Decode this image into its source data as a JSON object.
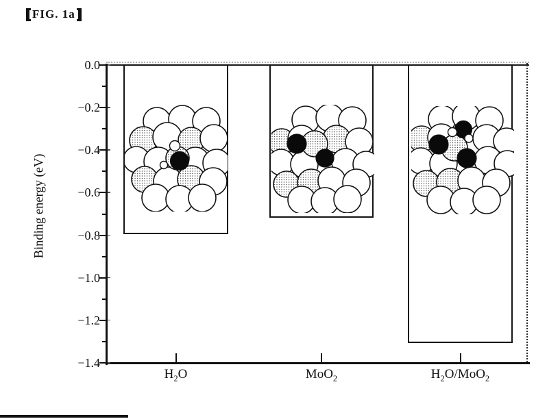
{
  "figure": {
    "label_text": "FIG. 1a",
    "label_full": "【FIG. 1a】"
  },
  "chart": {
    "ylabel": "Binding energy (eV)",
    "ytick_labels": [
      "0.0",
      "−0.2",
      "−0.4",
      "−0.6",
      "−0.8",
      "−1.0",
      "−1.2",
      "−1.4"
    ],
    "bars": [
      {
        "name": "H2O",
        "label_segments": [
          "H",
          "_2",
          "O"
        ],
        "molecule": {
          "description": "atom cluster with one adsorbed dark atom and small atoms",
          "dark_atoms": 1,
          "small_atoms": 2
        }
      },
      {
        "name": "MoO2",
        "label_segments": [
          "MoO",
          "_2"
        ],
        "molecule": {
          "description": "atom cluster with two dark atoms",
          "dark_atoms": 2,
          "small_atoms": 0
        }
      },
      {
        "name": "H2O/MoO2",
        "label_segments": [
          "H",
          "_2",
          "O/MoO",
          "_2"
        ],
        "molecule": {
          "description": "atom cluster with three dark atoms and small atoms",
          "dark_atoms": 3,
          "small_atoms": 2
        }
      }
    ],
    "colors": {
      "axis": "#111111",
      "bar_fill": "#ffffff",
      "bar_border": "#141414",
      "dotted_border": "#2a2a2a",
      "halo": "#b0b0b0"
    }
  },
  "chart_data": {
    "type": "bar",
    "categories": [
      "H2O",
      "MoO2",
      "H2O/MoO2"
    ],
    "values": [
      -0.79,
      -0.71,
      -1.3
    ],
    "title": "FIG. 1a",
    "xlabel": "",
    "ylabel": "Binding energy (eV)",
    "ylim": [
      -1.4,
      0.0
    ],
    "yticks": [
      0.0,
      -0.2,
      -0.4,
      -0.6,
      -0.8,
      -1.0,
      -1.2,
      -1.4
    ],
    "minor_ytick_step": 0.1,
    "grid": false,
    "legend": "none",
    "annotations": [
      "space-filling atomic cluster illustration drawn inside each bar"
    ]
  }
}
